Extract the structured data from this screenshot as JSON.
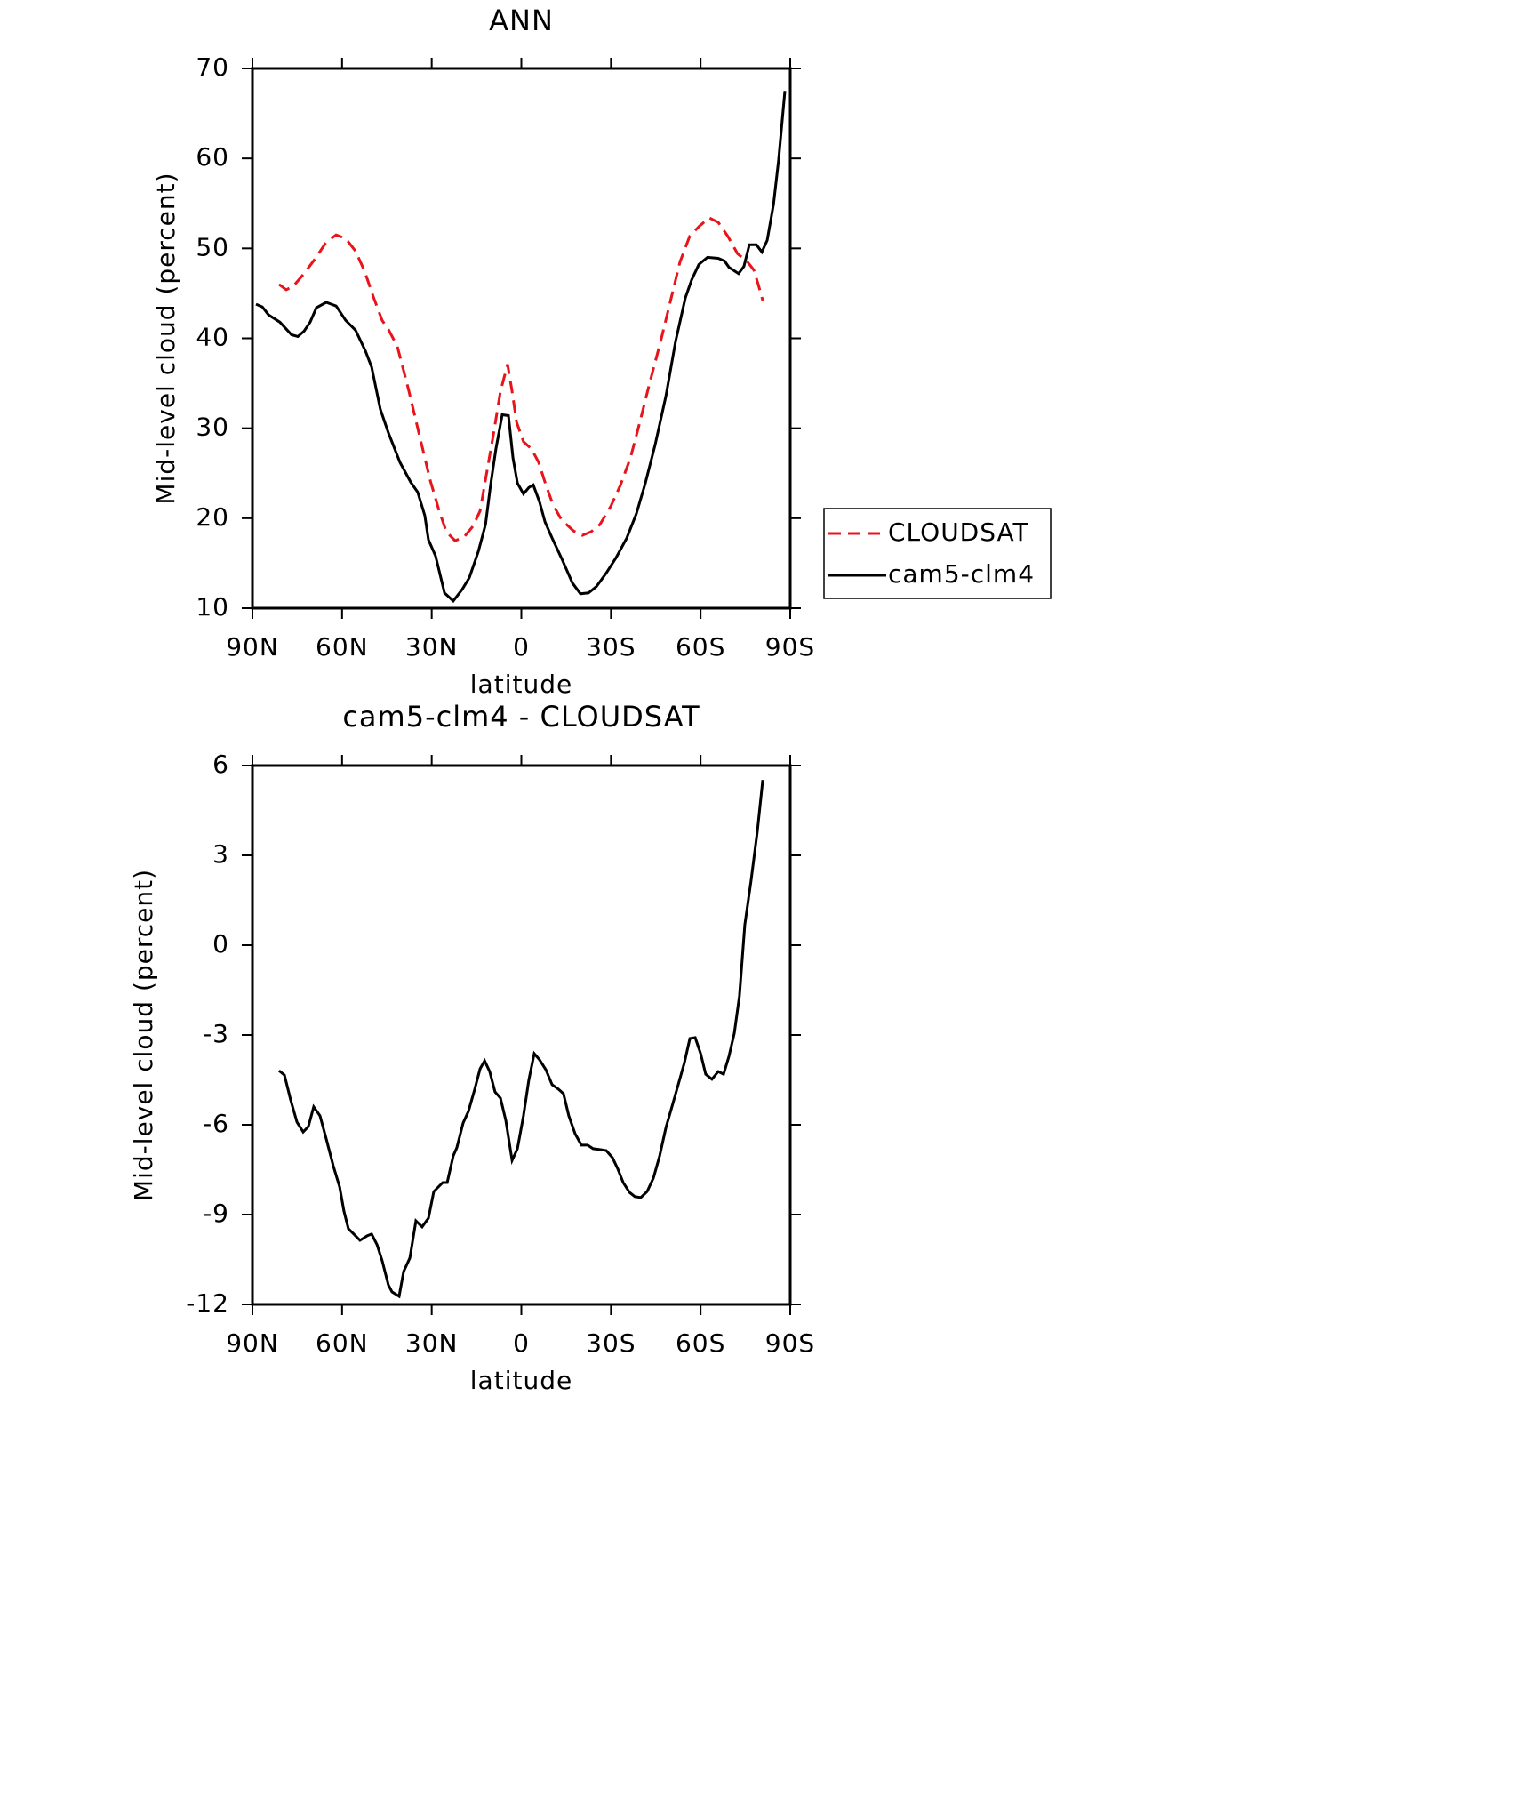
{
  "chart_data": [
    {
      "type": "line",
      "title": "ANN",
      "xlabel": "latitude",
      "ylabel": "Mid-level cloud (percent)",
      "xlim": [
        90,
        -90
      ],
      "xticks": [
        {
          "value": 90,
          "label": "90N"
        },
        {
          "value": 60,
          "label": "60N"
        },
        {
          "value": 30,
          "label": "30N"
        },
        0,
        {
          "value": -30,
          "label": "30S"
        },
        {
          "value": -60,
          "label": "60S"
        },
        {
          "value": -90,
          "label": "90S"
        }
      ],
      "ylim": [
        10,
        70
      ],
      "yticks": [
        10,
        20,
        30,
        40,
        50,
        60,
        70
      ],
      "legend": "right",
      "series": [
        {
          "name": "CLOUDSAT",
          "color": "#e8141c",
          "linestyle": "dashed",
          "x": [
            81.1,
            78.7,
            76.3,
            72.7,
            68.9,
            65.3,
            62.0,
            58.8,
            55.5,
            52.5,
            49.5,
            46.6,
            44.5,
            41.5,
            37.6,
            34.1,
            30.5,
            27.5,
            25.1,
            22.2,
            19.2,
            16.2,
            13.8,
            11.5,
            9.4,
            7.0,
            4.6,
            3.1,
            1.6,
            -0.7,
            -3.4,
            -5.8,
            -8.2,
            -10.6,
            -13.5,
            -17.4,
            -20.4,
            -23.4,
            -26.3,
            -29.9,
            -33.2,
            -36.5,
            -39.7,
            -43.0,
            -46.6,
            -49.8,
            -53.1,
            -56.4,
            -59.7,
            -62.9,
            -65.9,
            -69.2,
            -72.4,
            -75.7,
            -77.8,
            -79.3,
            -80.8
          ],
          "values": [
            46.0,
            45.4,
            45.8,
            47.2,
            48.9,
            50.7,
            51.5,
            51.1,
            49.7,
            47.5,
            44.6,
            42.0,
            41.0,
            39.1,
            34.1,
            29.2,
            24.2,
            20.8,
            18.5,
            17.5,
            17.9,
            19.1,
            20.8,
            25.2,
            29.2,
            34.1,
            37.1,
            34.1,
            30.7,
            28.5,
            27.7,
            26.2,
            23.7,
            21.5,
            19.8,
            18.6,
            18.1,
            18.5,
            19.3,
            21.3,
            23.7,
            26.7,
            30.7,
            35.1,
            39.6,
            44.0,
            48.5,
            51.4,
            52.5,
            53.4,
            52.9,
            51.3,
            49.4,
            48.5,
            47.6,
            46.0,
            44.2
          ]
        },
        {
          "name": "cam5-clm4",
          "color": "#000000",
          "linestyle": "solid",
          "x": [
            88.8,
            86.7,
            84.6,
            80.8,
            76.9,
            74.8,
            72.7,
            70.7,
            68.6,
            65.3,
            62.0,
            58.8,
            55.5,
            52.2,
            50.1,
            47.2,
            44.5,
            40.6,
            37.0,
            34.7,
            32.3,
            31.1,
            28.7,
            25.7,
            22.8,
            19.8,
            17.4,
            14.4,
            12.0,
            10.3,
            8.5,
            6.4,
            4.3,
            2.8,
            1.3,
            -0.7,
            -2.5,
            -4.0,
            -6.1,
            -7.9,
            -10.3,
            -13.8,
            -17.1,
            -19.8,
            -22.5,
            -25.1,
            -28.4,
            -31.7,
            -35.3,
            -38.5,
            -41.5,
            -44.8,
            -48.4,
            -51.6,
            -54.9,
            -57.0,
            -59.4,
            -62.3,
            -65.9,
            -68.0,
            -69.5,
            -72.7,
            -74.5,
            -76.3,
            -78.7,
            -80.5,
            -82.3,
            -84.4,
            -86.1,
            -88.2
          ],
          "values": [
            43.8,
            43.5,
            42.6,
            41.8,
            40.4,
            40.2,
            40.8,
            41.8,
            43.4,
            44.0,
            43.6,
            42.0,
            40.9,
            38.6,
            36.8,
            32.1,
            29.5,
            26.2,
            24.0,
            22.9,
            20.3,
            17.6,
            15.8,
            11.7,
            10.8,
            12.1,
            13.4,
            16.3,
            19.3,
            23.7,
            27.7,
            31.5,
            31.4,
            26.7,
            23.9,
            22.7,
            23.4,
            23.7,
            21.8,
            19.6,
            17.8,
            15.3,
            12.8,
            11.6,
            11.7,
            12.4,
            13.9,
            15.6,
            17.8,
            20.5,
            23.9,
            28.2,
            33.6,
            39.6,
            44.5,
            46.5,
            48.2,
            49.0,
            48.9,
            48.6,
            47.9,
            47.2,
            48.0,
            50.4,
            50.4,
            49.6,
            50.9,
            54.9,
            59.8,
            67.5
          ]
        }
      ]
    },
    {
      "type": "line",
      "title": "cam5-clm4 - CLOUDSAT",
      "xlabel": "latitude",
      "ylabel": "Mid-level cloud (percent)",
      "xlim": [
        90,
        -90
      ],
      "xticks": [
        {
          "value": 90,
          "label": "90N"
        },
        {
          "value": 60,
          "label": "60N"
        },
        {
          "value": 30,
          "label": "30N"
        },
        0,
        {
          "value": -30,
          "label": "30S"
        },
        {
          "value": -60,
          "label": "60S"
        },
        {
          "value": -90,
          "label": "90S"
        }
      ],
      "ylim": [
        -12,
        6
      ],
      "yticks": [
        -12,
        -9,
        -6,
        -3,
        0,
        3,
        6
      ],
      "color": "#000000",
      "x": [
        81.1,
        79.3,
        77.2,
        75.1,
        73.0,
        71.3,
        69.5,
        67.4,
        65.3,
        62.9,
        60.8,
        59.4,
        57.9,
        55.5,
        54.0,
        51.6,
        50.1,
        48.3,
        46.6,
        44.5,
        43.3,
        40.9,
        39.4,
        37.3,
        35.3,
        33.2,
        31.1,
        29.3,
        27.8,
        26.3,
        24.8,
        22.8,
        21.6,
        19.5,
        17.7,
        15.6,
        13.8,
        12.3,
        10.6,
        8.8,
        7.0,
        5.2,
        3.1,
        1.3,
        -0.7,
        -2.5,
        -4.3,
        -6.1,
        -8.2,
        -10.3,
        -12.4,
        -14.1,
        -15.9,
        -18.0,
        -20.1,
        -22.2,
        -24.0,
        -26.3,
        -28.4,
        -30.5,
        -32.3,
        -34.1,
        -36.2,
        -38.0,
        -40.0,
        -42.1,
        -44.2,
        -46.3,
        -48.4,
        -50.4,
        -52.5,
        -54.6,
        -56.4,
        -58.2,
        -60.0,
        -61.7,
        -63.8,
        -65.9,
        -67.7,
        -69.5,
        -71.3,
        -73.0,
        -74.8,
        -76.9,
        -79.0,
        -80.8
      ],
      "values": [
        -4.19,
        -4.34,
        -5.17,
        -5.91,
        -6.24,
        -6.06,
        -5.4,
        -5.7,
        -6.47,
        -7.39,
        -8.08,
        -8.88,
        -9.47,
        -9.71,
        -9.86,
        -9.71,
        -9.65,
        -10.01,
        -10.54,
        -11.35,
        -11.58,
        -11.73,
        -10.9,
        -10.45,
        -9.21,
        -9.41,
        -9.12,
        -8.23,
        -8.08,
        -7.93,
        -7.93,
        -7.04,
        -6.77,
        -5.94,
        -5.55,
        -4.81,
        -4.13,
        -3.86,
        -4.22,
        -4.9,
        -5.11,
        -5.85,
        -7.19,
        -6.8,
        -5.7,
        -4.51,
        -3.62,
        -3.83,
        -4.16,
        -4.66,
        -4.81,
        -4.96,
        -5.7,
        -6.3,
        -6.68,
        -6.68,
        -6.8,
        -6.83,
        -6.86,
        -7.1,
        -7.48,
        -7.93,
        -8.26,
        -8.4,
        -8.43,
        -8.23,
        -7.78,
        -7.04,
        -6.09,
        -5.4,
        -4.66,
        -3.92,
        -3.12,
        -3.09,
        -3.62,
        -4.31,
        -4.48,
        -4.22,
        -4.31,
        -3.71,
        -2.94,
        -1.69,
        0.68,
        2.17,
        3.8,
        5.52
      ]
    }
  ]
}
